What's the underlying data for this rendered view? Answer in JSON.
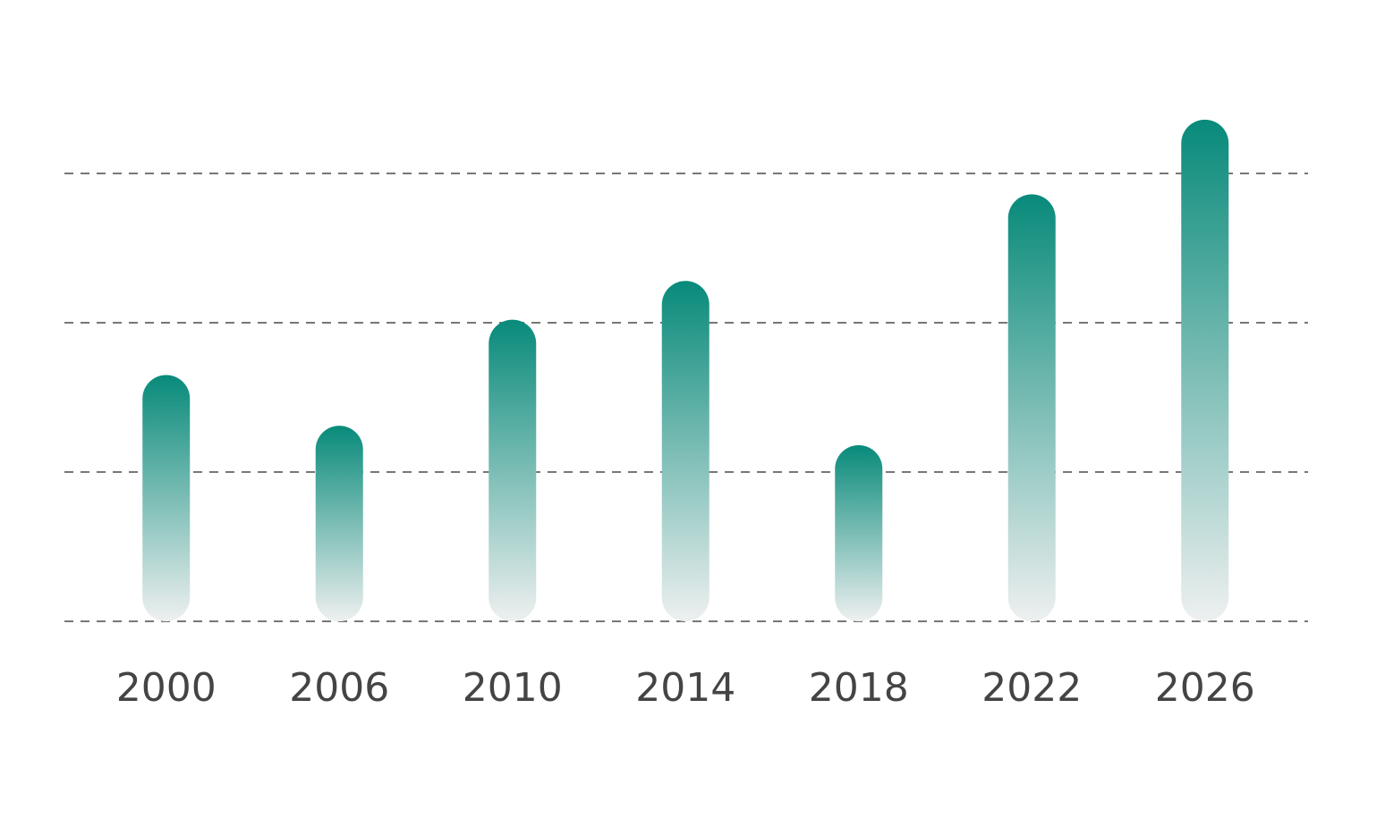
{
  "chart_data": {
    "type": "bar",
    "categories": [
      "2000",
      "2006",
      "2010",
      "2014",
      "2018",
      "2022",
      "2026"
    ],
    "values": [
      1.65,
      1.31,
      2.02,
      2.28,
      1.18,
      2.86,
      3.36
    ],
    "color": "#088a7a",
    "ylim": [
      0,
      4
    ],
    "yticks": [
      0,
      1,
      2,
      3
    ],
    "grid": true
  }
}
